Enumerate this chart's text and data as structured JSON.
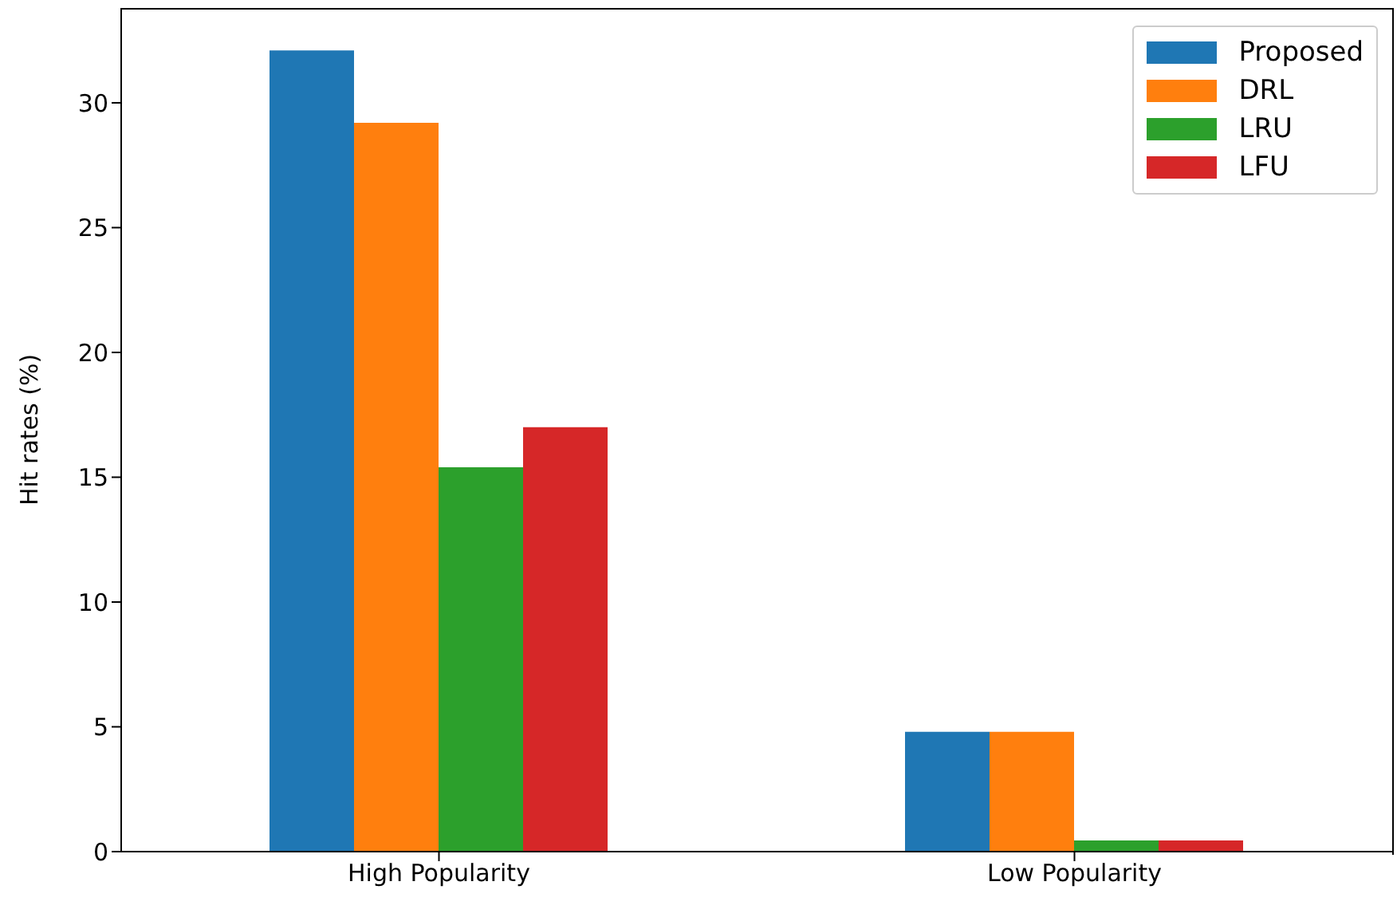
{
  "chart_data": {
    "type": "bar",
    "ylabel": "Hit rates (%)",
    "categories": [
      "High Popularity",
      "Low Popularity"
    ],
    "series": [
      {
        "name": "Proposed",
        "color": "#1f77b4",
        "values": [
          32.1,
          4.8
        ]
      },
      {
        "name": "DRL",
        "color": "#ff7f0e",
        "values": [
          29.2,
          4.8
        ]
      },
      {
        "name": "LRU",
        "color": "#2ca02c",
        "values": [
          15.4,
          0.45
        ]
      },
      {
        "name": "LFU",
        "color": "#d62728",
        "values": [
          17.0,
          0.45
        ]
      }
    ],
    "ylim": [
      0,
      33.8
    ],
    "yticks": [
      0,
      5,
      10,
      15,
      20,
      25,
      30
    ],
    "grid": false,
    "legend": "top right"
  }
}
